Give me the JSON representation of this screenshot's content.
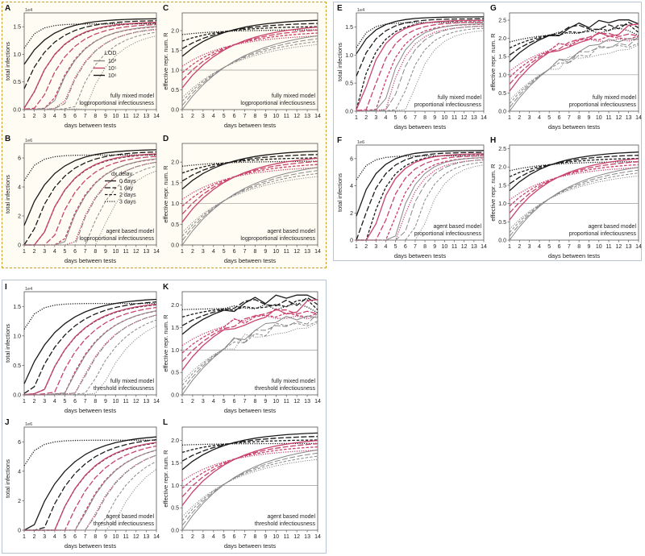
{
  "colors": {
    "black": "#1a1a1a",
    "pink": "#c8426c",
    "grey": "#888888",
    "frame_left": "#c8a02a",
    "frame": "#b9c3d6"
  },
  "legends": {
    "lod": {
      "title": "LOD",
      "items": [
        "10³",
        "10⁵",
        "10⁶"
      ]
    },
    "delay": {
      "title": "dx delay",
      "items": [
        "0 days",
        "1 day",
        "2 days",
        "3 days"
      ]
    }
  },
  "panels": [
    {
      "id": "A",
      "letter": "A",
      "type": "infections",
      "multiplier": "1e4",
      "yticks": [
        "0.0",
        "0.5",
        "1.0",
        "1.5"
      ],
      "yvals": [
        0,
        0.5,
        1.0,
        1.5
      ],
      "ymax": 1.75,
      "t1": 1.65,
      "ylabel": "total infections",
      "xlabel": "days between tests",
      "caption": [
        "fully mixed model",
        "logproportional infectiousness"
      ],
      "legend": "lod"
    },
    {
      "id": "C",
      "letter": "C",
      "type": "reff",
      "yticks": [
        "0.0",
        "0.5",
        "1.0",
        "1.5",
        "2.0"
      ],
      "yvals": [
        0,
        0.5,
        1,
        1.5,
        2
      ],
      "ymax": 2.45,
      "t1": 2.3,
      "ylabel": "effective repr. num. R",
      "xlabel": "days between tests",
      "caption": [
        "fully mixed model",
        "logproportional infectiousness"
      ]
    },
    {
      "id": "B",
      "letter": "B",
      "type": "infections",
      "multiplier": "1e6",
      "yticks": [
        "0",
        "2",
        "4",
        "6"
      ],
      "yvals": [
        0,
        2,
        4,
        6
      ],
      "ymax": 7.0,
      "t1": 6.6,
      "ylabel": "total infections",
      "xlabel": "days between tests",
      "caption": [
        "agent based model",
        "logproportional infectiousness"
      ],
      "legend": "delay"
    },
    {
      "id": "D",
      "letter": "D",
      "type": "reff",
      "yticks": [
        "0.0",
        "0.5",
        "1.0",
        "1.5",
        "2.0"
      ],
      "yvals": [
        0,
        0.5,
        1,
        1.5,
        2
      ],
      "ymax": 2.45,
      "t1": 2.3,
      "ylabel": "effective repr. num. R",
      "xlabel": "days between tests",
      "caption": [
        "agent based model",
        "logproportional infectiousness"
      ]
    },
    {
      "id": "E",
      "letter": "E",
      "type": "infections",
      "multiplier": "1e4",
      "yticks": [
        "0.0",
        "0.5",
        "1.0",
        "1.5"
      ],
      "yvals": [
        0,
        0.5,
        1.0,
        1.5
      ],
      "ymax": 1.75,
      "t1": 1.68,
      "ylabel": "total infections",
      "xlabel": "days between tests",
      "caption": [
        "fully mixed model",
        "proportional infectiousness"
      ]
    },
    {
      "id": "G",
      "letter": "G",
      "type": "reff",
      "yticks": [
        "0.0",
        "0.5",
        "1.0",
        "1.5",
        "2.0",
        "2.5"
      ],
      "yvals": [
        0,
        0.5,
        1,
        1.5,
        2,
        2.5
      ],
      "ymax": 2.7,
      "t1": 2.5,
      "ylabel": "effective repr. num. R",
      "xlabel": "days between tests",
      "caption": [
        "fully mixed model",
        "proportional infectiousness"
      ],
      "noise": true
    },
    {
      "id": "F",
      "letter": "F",
      "type": "infections",
      "multiplier": "1e6",
      "yticks": [
        "0",
        "2",
        "4",
        "6"
      ],
      "yvals": [
        0,
        2,
        4,
        6
      ],
      "ymax": 7.0,
      "t1": 6.6,
      "ylabel": "total infections",
      "xlabel": "days between tests",
      "caption": [
        "agent based model",
        "proportional infectiousness"
      ]
    },
    {
      "id": "H",
      "letter": "H",
      "type": "reff",
      "yticks": [
        "0.0",
        "0.5",
        "1.0",
        "1.5",
        "2.0",
        "2.5"
      ],
      "yvals": [
        0,
        0.5,
        1,
        1.5,
        2,
        2.5
      ],
      "ymax": 2.6,
      "t1": 2.45,
      "ylabel": "effective repr. num. R",
      "xlabel": "days between tests",
      "caption": [
        "agent based model",
        "proportional infectiousness"
      ]
    },
    {
      "id": "I",
      "letter": "I",
      "type": "infections",
      "multiplier": "1e4",
      "yticks": [
        "0.0",
        "0.5",
        "1.0",
        "1.5"
      ],
      "yvals": [
        0,
        0.5,
        1.0,
        1.5
      ],
      "ymax": 1.75,
      "t1": 1.65,
      "ylabel": "total infections",
      "xlabel": "days between tests",
      "caption": [
        "fully mixed model",
        "threshold infectiousness"
      ]
    },
    {
      "id": "K",
      "letter": "K",
      "type": "reff",
      "yticks": [
        "0.0",
        "0.5",
        "1.0",
        "1.5",
        "2.0"
      ],
      "yvals": [
        0,
        0.5,
        1,
        1.5,
        2
      ],
      "ymax": 2.3,
      "t1": 2.2,
      "ylabel": "effective repr. num. R",
      "xlabel": "days between tests",
      "caption": [
        "fully mixed model",
        "threshold infectiousness"
      ],
      "noise": true
    },
    {
      "id": "J",
      "letter": "J",
      "type": "infections",
      "multiplier": "1e6",
      "yticks": [
        "0",
        "2",
        "4",
        "6"
      ],
      "yvals": [
        0,
        2,
        4,
        6
      ],
      "ymax": 7.0,
      "t1": 6.5,
      "ylabel": "total infections",
      "xlabel": "days between tests",
      "caption": [
        "agent based model",
        "threshold infectiousness"
      ]
    },
    {
      "id": "L",
      "letter": "L",
      "type": "reff",
      "yticks": [
        "0.0",
        "0.5",
        "1.0",
        "1.5",
        "2.0"
      ],
      "yvals": [
        0,
        0.5,
        1,
        1.5,
        2
      ],
      "ymax": 2.3,
      "t1": 2.2,
      "ylabel": "effective repr. num. R",
      "xlabel": "days between tests",
      "caption": [
        "agent based model",
        "threshold infectiousness"
      ]
    }
  ],
  "chart_data": {
    "type": "line",
    "x": [
      1,
      2,
      3,
      4,
      5,
      6,
      7,
      8,
      9,
      10,
      11,
      12,
      13,
      14
    ],
    "xticks": [
      "1",
      "2",
      "3",
      "4",
      "5",
      "6",
      "7",
      "8",
      "9",
      "10",
      "11",
      "12",
      "13",
      "14"
    ],
    "reference_line": {
      "y": 1.0,
      "panels": [
        "C",
        "D",
        "G",
        "H",
        "K",
        "L"
      ]
    },
    "series_groups": [
      {
        "lod": "10⁶",
        "color": "#1a1a1a"
      },
      {
        "lod": "10⁵",
        "color": "#c8426c"
      },
      {
        "lod": "10³",
        "color": "#888888"
      }
    ],
    "delays": [
      "0 days",
      "1 day",
      "2 days",
      "3 days"
    ],
    "rule": "each panel: 12 curves (3 LOD x 4 dx delay); total infections rise from near 0 at short intervals to the plateau; R rises from ~0 toward the plateau"
  }
}
